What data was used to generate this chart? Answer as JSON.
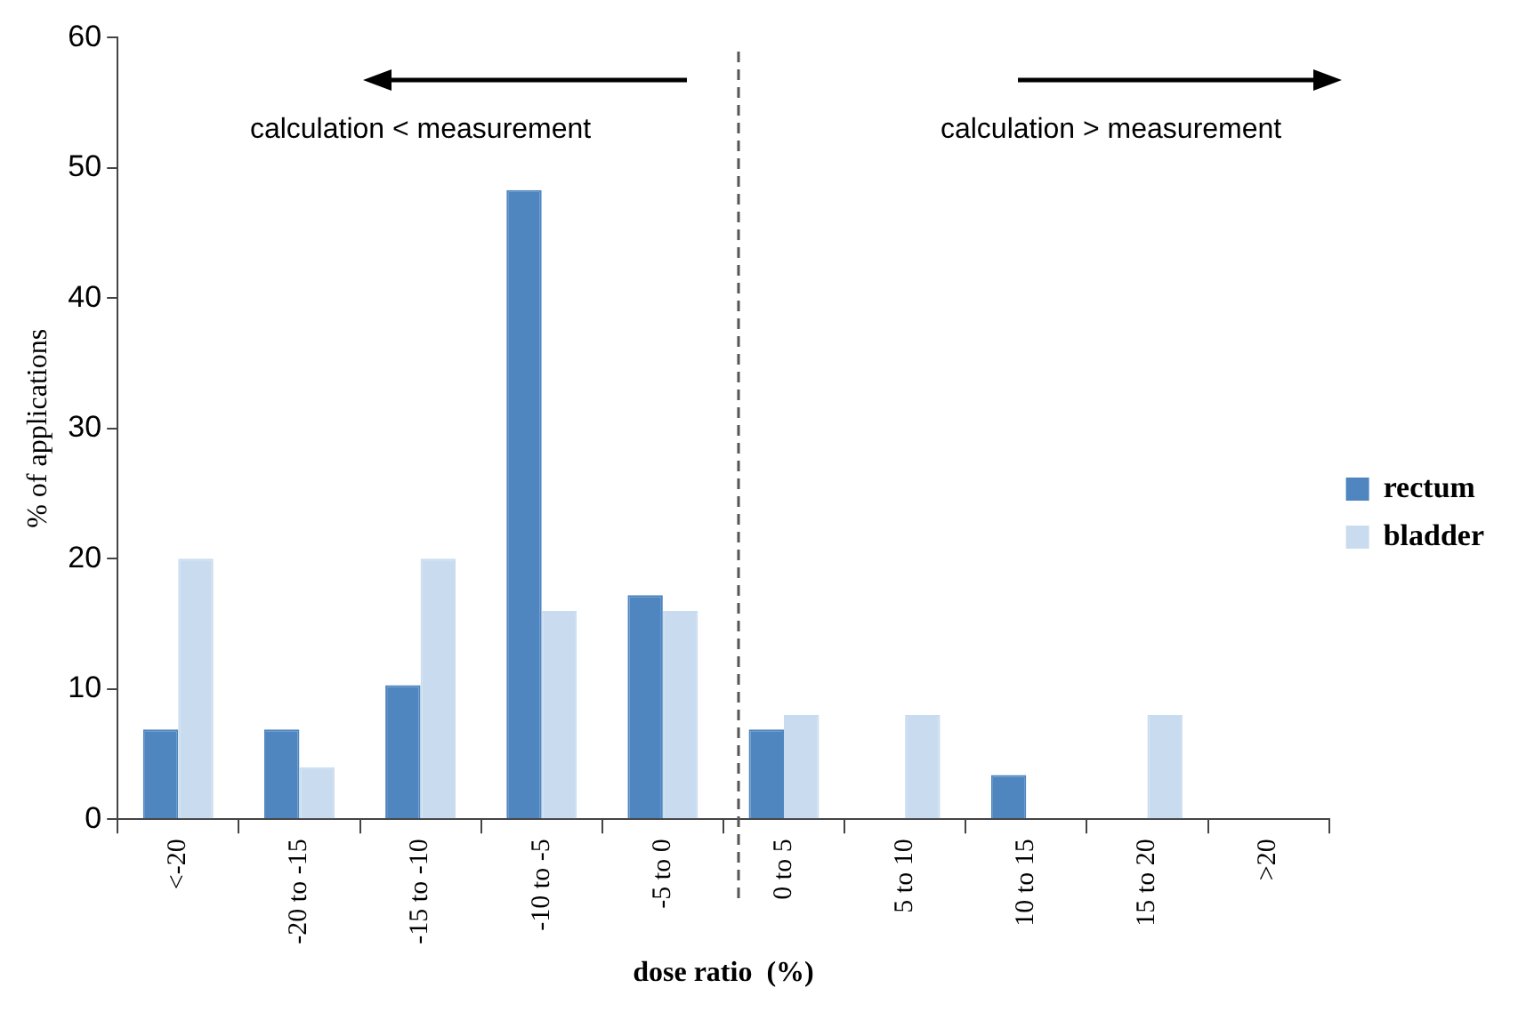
{
  "chart_data": {
    "type": "bar",
    "xlabel": "dose ratio  (%)",
    "ylabel": "% of applications",
    "categories": [
      "<-20",
      "-20 to -15",
      "-15 to -10",
      "-10 to -5",
      "-5 to 0",
      "0 to 5",
      "5 to 10",
      "10 to 15",
      "15 to 20",
      ">20"
    ],
    "series": [
      {
        "name": "rectum",
        "color": "#4f86c0",
        "values": [
          6.9,
          6.9,
          10.3,
          48.3,
          17.2,
          6.9,
          0,
          3.4,
          0,
          0
        ]
      },
      {
        "name": "bladder",
        "color": "#c9dcef",
        "values": [
          20,
          4,
          20,
          16,
          16,
          8,
          8,
          0,
          8,
          0
        ]
      }
    ],
    "ylim": [
      0,
      60
    ],
    "yticks": [
      0,
      10,
      20,
      30,
      40,
      50,
      60
    ],
    "grid": false,
    "legend": "right",
    "annotations": [
      "calculation < measurement",
      "calculation > measurement"
    ]
  }
}
